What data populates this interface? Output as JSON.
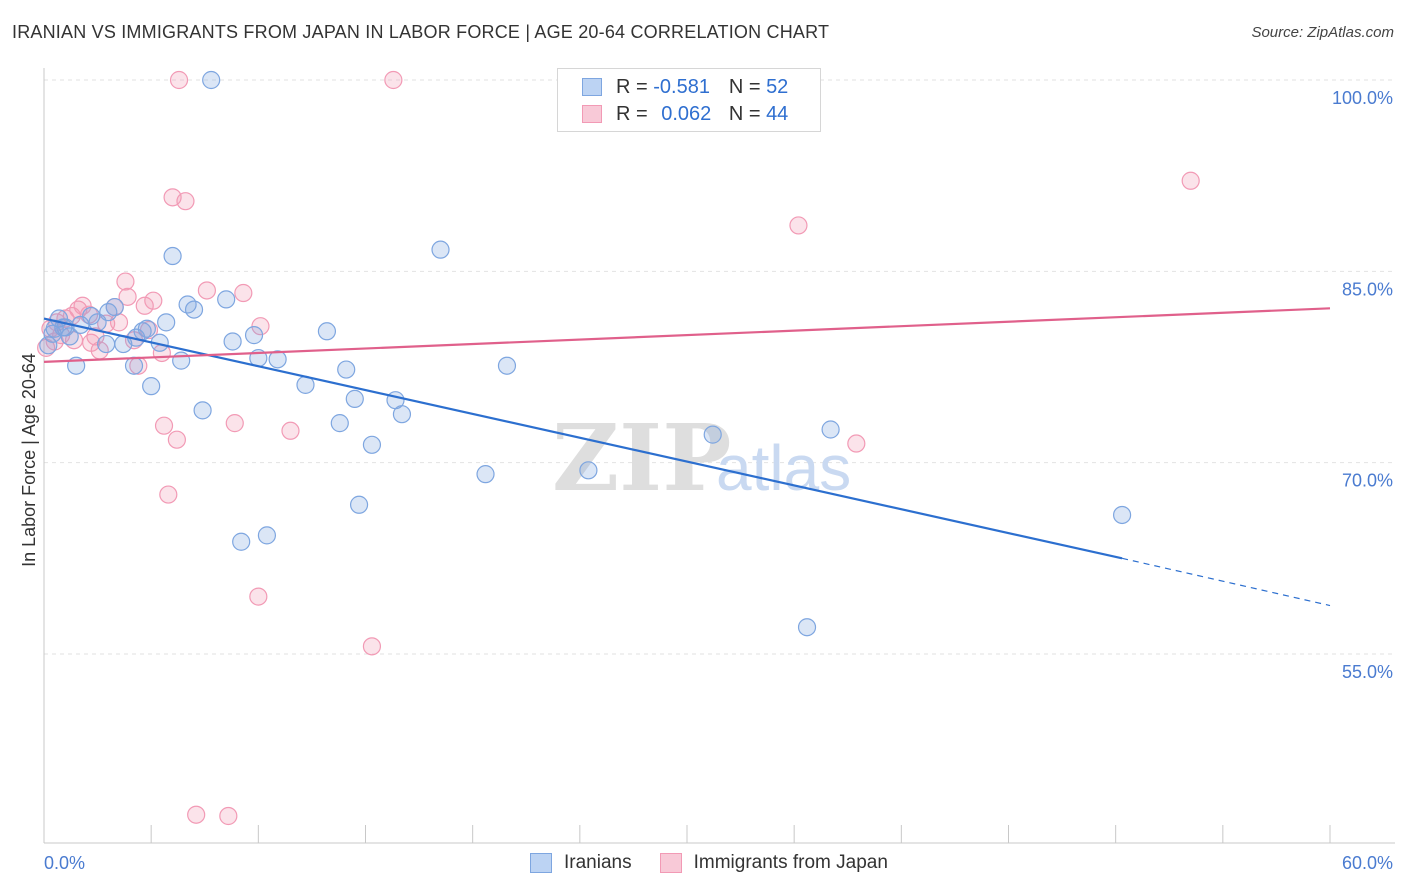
{
  "header": {
    "title": "IRANIAN VS IMMIGRANTS FROM JAPAN IN LABOR FORCE | AGE 20-64 CORRELATION CHART",
    "source": "Source: ZipAtlas.com"
  },
  "legend": {
    "rows": [
      {
        "r_label": "R =",
        "r_value": "-0.581",
        "n_label": "N =",
        "n_value": "52"
      },
      {
        "r_label": "R =",
        "r_value": "0.062",
        "n_label": "N =",
        "n_value": "44"
      }
    ]
  },
  "bottom_legend": {
    "items": [
      {
        "label": "Iranians"
      },
      {
        "label": "Immigrants from Japan"
      }
    ]
  },
  "watermark": {
    "part1": "ZIP",
    "part2": "atlas"
  },
  "chart_data": {
    "type": "scatter",
    "title": "IRANIAN VS IMMIGRANTS FROM JAPAN IN LABOR FORCE | AGE 20-64 CORRELATION CHART",
    "xlabel": "",
    "ylabel": "In Labor Force | Age 20-64",
    "xlim": [
      0,
      60
    ],
    "ylim": [
      40,
      103
    ],
    "x_tick_labels": [
      "0.0%",
      "60.0%"
    ],
    "y_ticks": [
      100,
      85,
      70,
      55
    ],
    "y_tick_labels": [
      "100.0%",
      "85.0%",
      "70.0%",
      "55.0%"
    ],
    "grid": true,
    "colors": {
      "iranians": "#7ea6e0",
      "japan": "#f29ab5",
      "iranians_line": "#2c6fcf",
      "japan_line": "#e0608b",
      "tick_text": "#4a7bd0"
    },
    "series": [
      {
        "name": "Iranians",
        "points": [
          [
            0.2,
            79.2
          ],
          [
            0.5,
            80.5
          ],
          [
            0.7,
            81.3
          ],
          [
            0.9,
            80.6
          ],
          [
            1.2,
            79.9
          ],
          [
            1.5,
            77.6
          ],
          [
            1.7,
            80.8
          ],
          [
            2.2,
            81.5
          ],
          [
            2.5,
            81.0
          ],
          [
            2.9,
            79.3
          ],
          [
            3.0,
            81.8
          ],
          [
            3.3,
            82.2
          ],
          [
            3.7,
            79.3
          ],
          [
            4.2,
            77.6
          ],
          [
            4.3,
            79.8
          ],
          [
            4.6,
            80.3
          ],
          [
            4.8,
            80.5
          ],
          [
            5.0,
            76.0
          ],
          [
            5.4,
            79.4
          ],
          [
            5.7,
            81.0
          ],
          [
            6.0,
            86.2
          ],
          [
            6.4,
            78.0
          ],
          [
            6.7,
            82.4
          ],
          [
            7.0,
            82.0
          ],
          [
            7.4,
            74.1
          ],
          [
            7.8,
            100.0
          ],
          [
            8.5,
            82.8
          ],
          [
            8.8,
            79.5
          ],
          [
            9.2,
            63.8
          ],
          [
            9.8,
            80.0
          ],
          [
            10.0,
            78.2
          ],
          [
            10.4,
            64.3
          ],
          [
            10.9,
            78.1
          ],
          [
            12.2,
            76.1
          ],
          [
            13.2,
            80.3
          ],
          [
            13.8,
            73.1
          ],
          [
            14.1,
            77.3
          ],
          [
            14.5,
            75.0
          ],
          [
            14.7,
            66.7
          ],
          [
            15.3,
            71.4
          ],
          [
            16.4,
            74.9
          ],
          [
            16.7,
            73.8
          ],
          [
            18.5,
            86.7
          ],
          [
            20.6,
            69.1
          ],
          [
            21.6,
            77.6
          ],
          [
            25.4,
            69.4
          ],
          [
            31.2,
            72.2
          ],
          [
            35.6,
            57.1
          ],
          [
            36.7,
            72.6
          ],
          [
            50.3,
            65.9
          ],
          [
            0.4,
            80.1
          ],
          [
            1.0,
            80.6
          ]
        ]
      },
      {
        "name": "Immigrants from Japan",
        "points": [
          [
            0.1,
            79.0
          ],
          [
            0.3,
            80.5
          ],
          [
            0.6,
            81.0
          ],
          [
            0.8,
            80.0
          ],
          [
            1.0,
            81.3
          ],
          [
            1.4,
            79.6
          ],
          [
            1.6,
            82.0
          ],
          [
            1.8,
            82.3
          ],
          [
            2.1,
            81.6
          ],
          [
            2.4,
            79.9
          ],
          [
            2.6,
            78.8
          ],
          [
            2.9,
            80.9
          ],
          [
            3.3,
            82.2
          ],
          [
            3.5,
            81.0
          ],
          [
            3.8,
            84.2
          ],
          [
            3.9,
            83.0
          ],
          [
            4.2,
            79.6
          ],
          [
            4.4,
            77.6
          ],
          [
            4.7,
            82.3
          ],
          [
            5.1,
            82.7
          ],
          [
            5.5,
            78.6
          ],
          [
            5.6,
            72.9
          ],
          [
            5.8,
            67.5
          ],
          [
            6.0,
            90.8
          ],
          [
            6.2,
            71.8
          ],
          [
            6.3,
            100.0
          ],
          [
            6.6,
            90.5
          ],
          [
            7.1,
            42.4
          ],
          [
            7.6,
            83.5
          ],
          [
            8.6,
            42.3
          ],
          [
            8.9,
            73.1
          ],
          [
            9.3,
            83.3
          ],
          [
            10.0,
            59.5
          ],
          [
            10.1,
            80.7
          ],
          [
            11.5,
            72.5
          ],
          [
            15.3,
            55.6
          ],
          [
            16.3,
            100.0
          ],
          [
            35.2,
            88.6
          ],
          [
            37.9,
            71.5
          ],
          [
            53.5,
            92.1
          ],
          [
            1.3,
            81.5
          ],
          [
            2.2,
            79.4
          ],
          [
            4.9,
            80.4
          ],
          [
            0.5,
            79.5
          ]
        ]
      }
    ],
    "trend_lines": [
      {
        "name": "Iranians",
        "x0": 0,
        "y0": 81.3,
        "x1": 50.3,
        "y1": 62.5,
        "dashed_to_x": 60,
        "dashed_to_y": 58.8
      },
      {
        "name": "Immigrants from Japan",
        "x0": 0,
        "y0": 77.9,
        "x1": 60,
        "y1": 82.1
      }
    ]
  }
}
